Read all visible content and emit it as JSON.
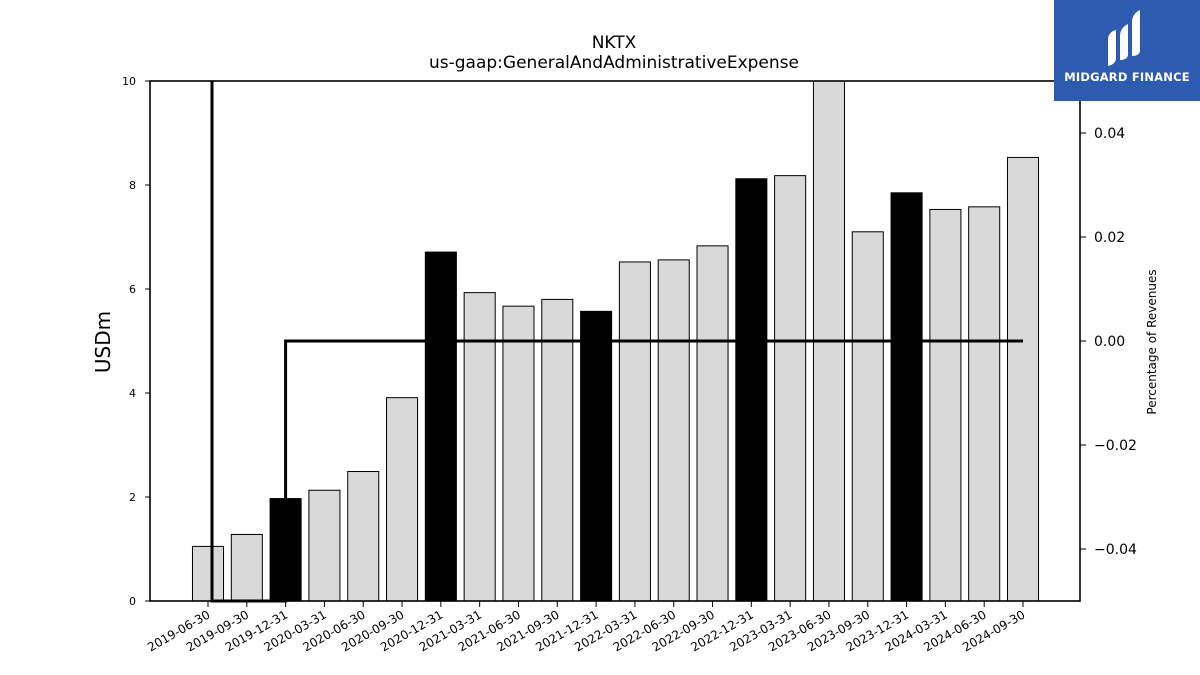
{
  "brand": {
    "name": "MIDGARD FINANCE"
  },
  "chart_data": {
    "type": "bar",
    "title": "NKTX",
    "subtitle": "us-gaap:GeneralAndAdministrativeExpense",
    "ylabel": "USDm",
    "y2label": "Percentage of Revenues",
    "ylim": [
      0,
      10
    ],
    "y2lim": [
      -0.05,
      0.05
    ],
    "yticks": [
      0,
      2,
      4,
      6,
      8,
      10
    ],
    "y2ticks": [
      -0.04,
      -0.02,
      0.0,
      0.02,
      0.04
    ],
    "y2tick_labels": [
      "−0.04",
      "−0.02",
      "0.00",
      "0.02",
      "0.04"
    ],
    "categories": [
      "2019-06-30",
      "2019-09-30",
      "2019-12-31",
      "2020-03-31",
      "2020-06-30",
      "2020-09-30",
      "2020-12-31",
      "2021-03-31",
      "2021-06-30",
      "2021-09-30",
      "2021-12-31",
      "2022-03-31",
      "2022-06-30",
      "2022-09-30",
      "2022-12-31",
      "2023-03-31",
      "2023-06-30",
      "2023-09-30",
      "2023-12-31",
      "2024-03-31",
      "2024-06-30",
      "2024-09-30"
    ],
    "values": [
      1.05,
      1.28,
      1.97,
      2.13,
      2.49,
      3.91,
      6.71,
      5.93,
      5.67,
      5.8,
      5.57,
      6.52,
      6.56,
      6.83,
      8.12,
      8.18,
      10.05,
      7.1,
      7.85,
      7.53,
      7.58,
      8.53
    ],
    "highlight_categories": [
      "2019-12-31",
      "2020-12-31",
      "2021-12-31",
      "2022-12-31",
      "2023-12-31"
    ],
    "line_series": {
      "axis": "secondary",
      "points": [
        {
          "x": "2019-06-30",
          "y": 0.05
        },
        {
          "x": "2019-06-30",
          "y": -0.05
        },
        {
          "x": "2019-12-31",
          "y": -0.05
        },
        {
          "x": "2019-12-31",
          "y": 0.0
        },
        {
          "x": "2024-09-30",
          "y": 0.0
        }
      ]
    },
    "colors": {
      "bar": "#d9d9d9",
      "highlight": "#000000",
      "line": "#000000"
    },
    "grid": false
  }
}
